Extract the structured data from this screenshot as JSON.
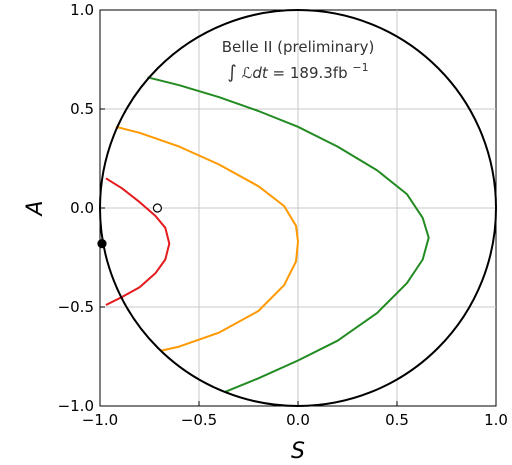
{
  "chart_data": {
    "type": "line",
    "xlabel": "S",
    "ylabel": "A",
    "xlim": [
      -1.0,
      1.0
    ],
    "ylim": [
      -1.0,
      1.0
    ],
    "grid": true,
    "x_ticks": [
      -1.0,
      -0.5,
      0.0,
      0.5,
      1.0
    ],
    "x_tick_labels": [
      "−1.0",
      "−0.5",
      "0.0",
      "0.5",
      "1.0"
    ],
    "y_ticks": [
      -1.0,
      -0.5,
      0.0,
      0.5,
      1.0
    ],
    "y_tick_labels": [
      "−1.0",
      "−0.5",
      "0.0",
      "0.5",
      "1.0"
    ],
    "annotation": {
      "line1": "Belle II (preliminary)",
      "line2_prefix": "∫",
      "line2_math": "ℒdt",
      "line2_eq": " = 189.3fb",
      "line2_sup": "−1"
    },
    "boundary": {
      "type": "unit-circle",
      "color": "#000000"
    },
    "series": [
      {
        "color": "#e41a1c",
        "points": [
          [
            -0.97,
            0.15
          ],
          [
            -0.89,
            0.1
          ],
          [
            -0.8,
            0.03
          ],
          [
            -0.72,
            -0.04
          ],
          [
            -0.67,
            -0.1
          ],
          [
            -0.65,
            -0.18
          ],
          [
            -0.67,
            -0.26
          ],
          [
            -0.72,
            -0.33
          ],
          [
            -0.8,
            -0.4
          ],
          [
            -0.89,
            -0.45
          ],
          [
            -0.97,
            -0.49
          ]
        ]
      },
      {
        "color": "#ff9900",
        "points": [
          [
            -0.92,
            0.41
          ],
          [
            -0.8,
            0.38
          ],
          [
            -0.6,
            0.31
          ],
          [
            -0.4,
            0.22
          ],
          [
            -0.2,
            0.11
          ],
          [
            -0.07,
            0.01
          ],
          [
            -0.01,
            -0.09
          ],
          [
            0.0,
            -0.17
          ],
          [
            -0.01,
            -0.27
          ],
          [
            -0.07,
            -0.39
          ],
          [
            -0.2,
            -0.52
          ],
          [
            -0.4,
            -0.63
          ],
          [
            -0.6,
            -0.7
          ],
          [
            -0.69,
            -0.72
          ]
        ]
      },
      {
        "color": "#228b22",
        "points": [
          [
            -0.76,
            0.66
          ],
          [
            -0.6,
            0.62
          ],
          [
            -0.4,
            0.56
          ],
          [
            -0.2,
            0.49
          ],
          [
            0.0,
            0.41
          ],
          [
            0.2,
            0.31
          ],
          [
            0.4,
            0.19
          ],
          [
            0.55,
            0.07
          ],
          [
            0.63,
            -0.05
          ],
          [
            0.66,
            -0.15
          ],
          [
            0.63,
            -0.26
          ],
          [
            0.55,
            -0.38
          ],
          [
            0.4,
            -0.53
          ],
          [
            0.2,
            -0.67
          ],
          [
            0.0,
            -0.77
          ],
          [
            -0.2,
            -0.86
          ],
          [
            -0.37,
            -0.93
          ]
        ]
      }
    ],
    "markers": [
      {
        "x": -0.71,
        "y": 0.0,
        "style": "open-circle"
      },
      {
        "x": -0.99,
        "y": -0.18,
        "style": "filled-circle"
      }
    ]
  }
}
